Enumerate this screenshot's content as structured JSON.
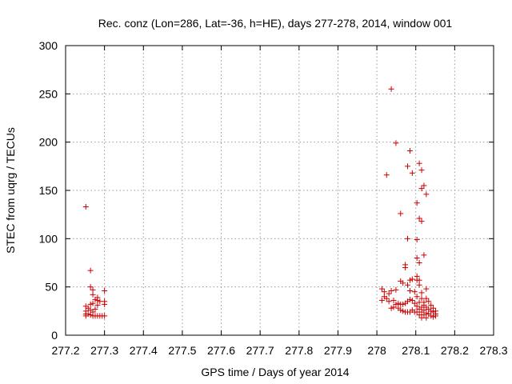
{
  "chart_data": {
    "type": "scatter",
    "title": "Rec. conz (Lon=286, Lat=-36, h=HE), days 277-278, 2014, window 001",
    "xlabel": "GPS time / Days of year 2014",
    "ylabel": "STEC from uqrg / TECUs",
    "xlim": [
      277.2,
      278.3
    ],
    "ylim": [
      0,
      300
    ],
    "xticks": [
      277.2,
      277.3,
      277.4,
      277.5,
      277.6,
      277.7,
      277.8,
      277.9,
      278,
      278.1,
      278.2,
      278.3
    ],
    "xtick_labels": [
      "277.2",
      "277.3",
      "277.4",
      "277.5",
      "277.6",
      "277.7",
      "277.8",
      "277.9",
      "278",
      "278.1",
      "278.2",
      "278.3"
    ],
    "yticks": [
      0,
      50,
      100,
      150,
      200,
      250,
      300
    ],
    "ytick_labels": [
      "0",
      "50",
      "100",
      "150",
      "200",
      "250",
      "300"
    ],
    "grid": true,
    "marker": "plus",
    "colors": {
      "points": "#cc0000",
      "grid": "#999999",
      "axes": "#000000"
    },
    "series": [
      {
        "points": [
          [
            277.252,
            133
          ],
          [
            277.252,
            30
          ],
          [
            277.252,
            25
          ],
          [
            277.252,
            22
          ],
          [
            277.252,
            20
          ],
          [
            277.258,
            28
          ],
          [
            277.258,
            22
          ],
          [
            277.264,
            67
          ],
          [
            277.264,
            50
          ],
          [
            277.264,
            32
          ],
          [
            277.264,
            26
          ],
          [
            277.264,
            21
          ],
          [
            277.27,
            47
          ],
          [
            277.27,
            42
          ],
          [
            277.27,
            33
          ],
          [
            277.27,
            24
          ],
          [
            277.27,
            20
          ],
          [
            277.276,
            37
          ],
          [
            277.276,
            27
          ],
          [
            277.276,
            20
          ],
          [
            277.282,
            39
          ],
          [
            277.282,
            36
          ],
          [
            277.282,
            31
          ],
          [
            277.282,
            20
          ],
          [
            277.288,
            35
          ],
          [
            277.288,
            20
          ],
          [
            277.294,
            20
          ],
          [
            277.3,
            46
          ],
          [
            277.3,
            35
          ],
          [
            277.3,
            32
          ],
          [
            277.3,
            20
          ],
          [
            278.013,
            48
          ],
          [
            278.013,
            36
          ],
          [
            278.019,
            45
          ],
          [
            278.019,
            40
          ],
          [
            278.025,
            166
          ],
          [
            278.025,
            38
          ],
          [
            278.031,
            43
          ],
          [
            278.031,
            35
          ],
          [
            278.037,
            255
          ],
          [
            278.037,
            46
          ],
          [
            278.037,
            28
          ],
          [
            278.043,
            36
          ],
          [
            278.043,
            29
          ],
          [
            278.049,
            199
          ],
          [
            278.049,
            47
          ],
          [
            278.049,
            32
          ],
          [
            278.055,
            33
          ],
          [
            278.055,
            28
          ],
          [
            278.061,
            126
          ],
          [
            278.061,
            56
          ],
          [
            278.061,
            32
          ],
          [
            278.061,
            26
          ],
          [
            278.067,
            54
          ],
          [
            278.067,
            32
          ],
          [
            278.067,
            25
          ],
          [
            278.073,
            73
          ],
          [
            278.073,
            70
          ],
          [
            278.073,
            33
          ],
          [
            278.073,
            24
          ],
          [
            278.079,
            175
          ],
          [
            278.079,
            100
          ],
          [
            278.079,
            52
          ],
          [
            278.079,
            35
          ],
          [
            278.079,
            24
          ],
          [
            278.085,
            191
          ],
          [
            278.085,
            57
          ],
          [
            278.085,
            46
          ],
          [
            278.085,
            37
          ],
          [
            278.085,
            24
          ],
          [
            278.091,
            168
          ],
          [
            278.091,
            58
          ],
          [
            278.091,
            36
          ],
          [
            278.091,
            26
          ],
          [
            278.097,
            45
          ],
          [
            278.097,
            33
          ],
          [
            278.097,
            24
          ],
          [
            278.103,
            137
          ],
          [
            278.103,
            99
          ],
          [
            278.103,
            80
          ],
          [
            278.103,
            61
          ],
          [
            278.103,
            57
          ],
          [
            278.103,
            40
          ],
          [
            278.103,
            30
          ],
          [
            278.103,
            24
          ],
          [
            278.109,
            178
          ],
          [
            278.109,
            121
          ],
          [
            278.109,
            75
          ],
          [
            278.109,
            57
          ],
          [
            278.109,
            52
          ],
          [
            278.109,
            34
          ],
          [
            278.109,
            27
          ],
          [
            278.109,
            21
          ],
          [
            278.115,
            171
          ],
          [
            278.115,
            152
          ],
          [
            278.115,
            118
          ],
          [
            278.115,
            44
          ],
          [
            278.115,
            38
          ],
          [
            278.115,
            29
          ],
          [
            278.115,
            24
          ],
          [
            278.115,
            18
          ],
          [
            278.121,
            155
          ],
          [
            278.121,
            83
          ],
          [
            278.121,
            34
          ],
          [
            278.121,
            31
          ],
          [
            278.121,
            26
          ],
          [
            278.121,
            21
          ],
          [
            278.127,
            146
          ],
          [
            278.127,
            48
          ],
          [
            278.127,
            38
          ],
          [
            278.127,
            29
          ],
          [
            278.127,
            23
          ],
          [
            278.127,
            18
          ],
          [
            278.133,
            35
          ],
          [
            278.133,
            27
          ],
          [
            278.133,
            22
          ],
          [
            278.139,
            31
          ],
          [
            278.139,
            25
          ],
          [
            278.139,
            20
          ],
          [
            278.145,
            28
          ],
          [
            278.145,
            24
          ],
          [
            278.145,
            19
          ],
          [
            278.151,
            25
          ],
          [
            278.151,
            22
          ],
          [
            278.151,
            20
          ]
        ]
      }
    ]
  }
}
